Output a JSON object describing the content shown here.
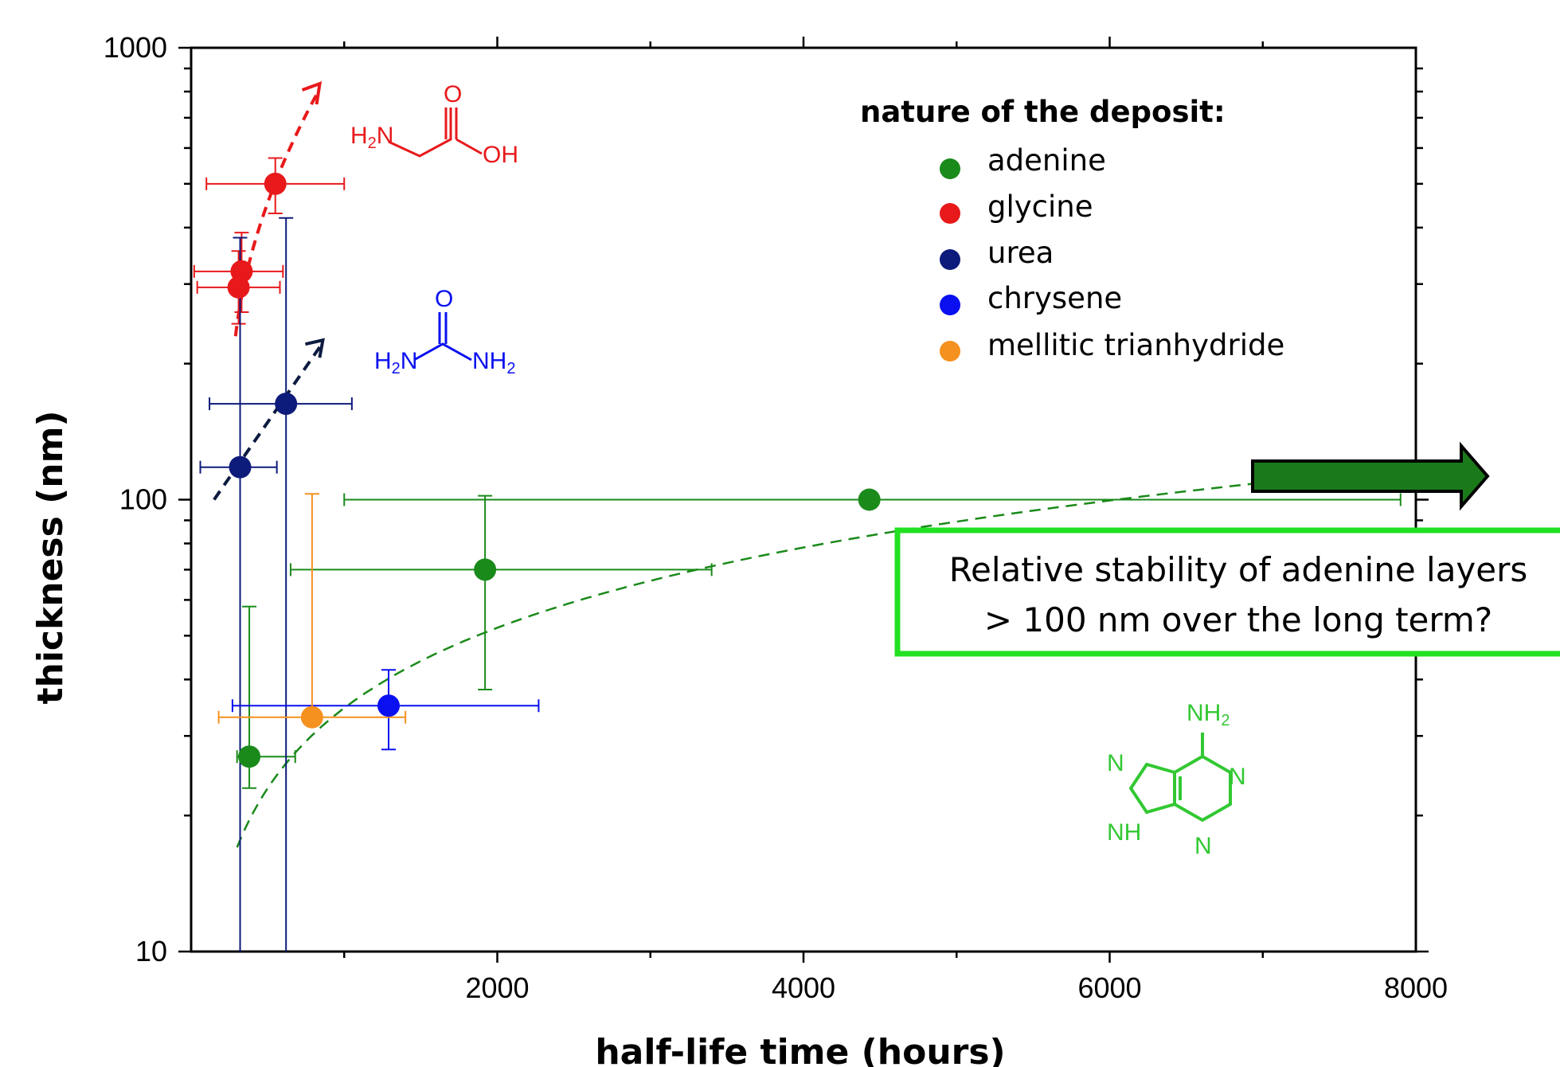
{
  "chart_data": {
    "type": "scatter",
    "xlabel": "half-life time (hours)",
    "ylabel": "thickness  (nm)",
    "xlim": [
      0,
      8000
    ],
    "ylim": [
      10,
      1000
    ],
    "y_scale": "log",
    "x_ticks": [
      2000,
      4000,
      6000,
      8000
    ],
    "y_ticks": [
      10,
      100,
      1000
    ],
    "legend": {
      "title": "nature of the deposit:",
      "placement": "top-right",
      "entries": [
        "adenine",
        "glycine",
        "urea",
        "chrysene",
        "mellitic trianhydride"
      ]
    },
    "series": [
      {
        "name": "adenine",
        "color": "#1a8a1a",
        "points": [
          {
            "x": 380,
            "y": 27,
            "x_err": [
              300,
              680
            ],
            "y_err": [
              23,
              58
            ]
          },
          {
            "x": 1920,
            "y": 70,
            "x_err": [
              650,
              3400
            ],
            "y_err": [
              38,
              102
            ]
          },
          {
            "x": 4430,
            "y": 100,
            "x_err": [
              1000,
              7900
            ],
            "y_err": [
              100,
              100
            ]
          }
        ]
      },
      {
        "name": "glycine",
        "color": "#e8191b",
        "points": [
          {
            "x": 550,
            "y": 500,
            "x_err": [
              100,
              1000
            ],
            "y_err": [
              430,
              570
            ]
          },
          {
            "x": 330,
            "y": 320,
            "x_err": [
              20,
              600
            ],
            "y_err": [
              260,
              390
            ]
          },
          {
            "x": 310,
            "y": 295,
            "x_err": [
              40,
              580
            ],
            "y_err": [
              245,
              355
            ]
          }
        ]
      },
      {
        "name": "urea",
        "color": "#0d1b7a",
        "points": [
          {
            "x": 620,
            "y": 163,
            "x_err": [
              120,
              1050
            ],
            "y_err": [
              0,
              420
            ]
          },
          {
            "x": 320,
            "y": 118,
            "x_err": [
              60,
              560
            ],
            "y_err": [
              0,
              380
            ]
          }
        ]
      },
      {
        "name": "chrysene",
        "color": "#0a10f0",
        "points": [
          {
            "x": 1290,
            "y": 35,
            "x_err": [
              270,
              2270
            ],
            "y_err": [
              28,
              42
            ]
          }
        ]
      },
      {
        "name": "mellitic trianhydride",
        "color": "#f5911e",
        "points": [
          {
            "x": 790,
            "y": 33,
            "x_err": [
              180,
              1400
            ],
            "y_err": [
              33,
              103
            ]
          }
        ]
      }
    ],
    "annotations": {
      "callout_lines": [
        "Relative stability of adenine layers",
        "> 100 nm over the long term?"
      ]
    }
  },
  "molecules": {
    "glycine": {
      "h2n": "H",
      "h2n_sub": "2",
      "h2n_n": "N",
      "o": "O",
      "oh": "OH",
      "color": "#e8191b"
    },
    "urea": {
      "o": "O",
      "h2n": "H",
      "h2n_sub": "2",
      "h2n_n": "N",
      "nh2": "NH",
      "nh2_sub": "2",
      "color": "#0a10f0"
    },
    "adenine": {
      "nh2": "NH",
      "nh2_sub": "2",
      "n1": "N",
      "n2": "N",
      "n3": "N",
      "nh": "NH",
      "n4": "N",
      "color": "#32c832"
    }
  }
}
